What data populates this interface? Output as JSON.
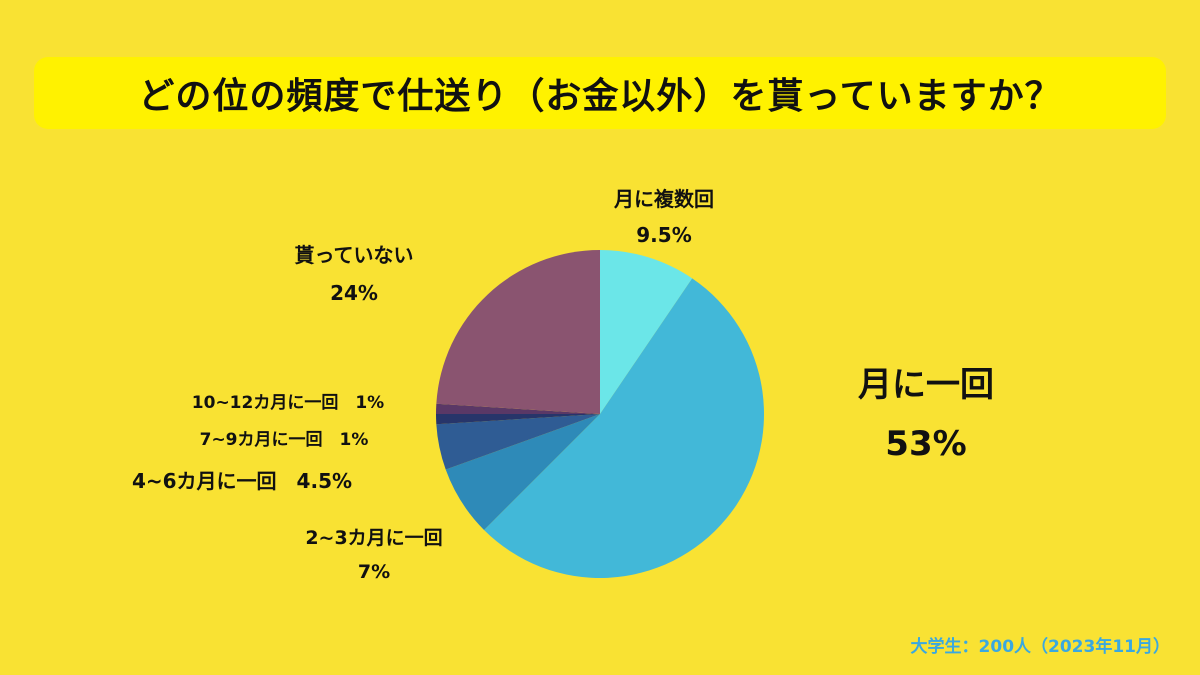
{
  "title": "どの位の頻度で仕送り（お金以外）を貰っていますか？",
  "footer": "大学生：200人（2023年11月）",
  "chart_data": {
    "type": "pie",
    "title": "どの位の頻度で仕送り（お金以外）を貰っていますか？",
    "slices": [
      {
        "label": "月に複数回",
        "value": 9.5,
        "display": "9.5%",
        "color": "#6BE6E8"
      },
      {
        "label": "月に一回",
        "value": 53,
        "display": "53%",
        "color": "#42B8D8"
      },
      {
        "label": "2~3カ月に一回",
        "value": 7,
        "display": "7%",
        "color": "#2E8AB8"
      },
      {
        "label": "4~6カ月に一回",
        "value": 4.5,
        "display": "4.5%",
        "color": "#2F5C94"
      },
      {
        "label": "7~9カ月に一回",
        "value": 1,
        "display": "1%",
        "color": "#27356A"
      },
      {
        "label": "10~12カ月に一回",
        "value": 1,
        "display": "1%",
        "color": "#5A3866"
      },
      {
        "label": "貰っていない",
        "value": 24,
        "display": "24%",
        "color": "#8A5470"
      }
    ]
  }
}
